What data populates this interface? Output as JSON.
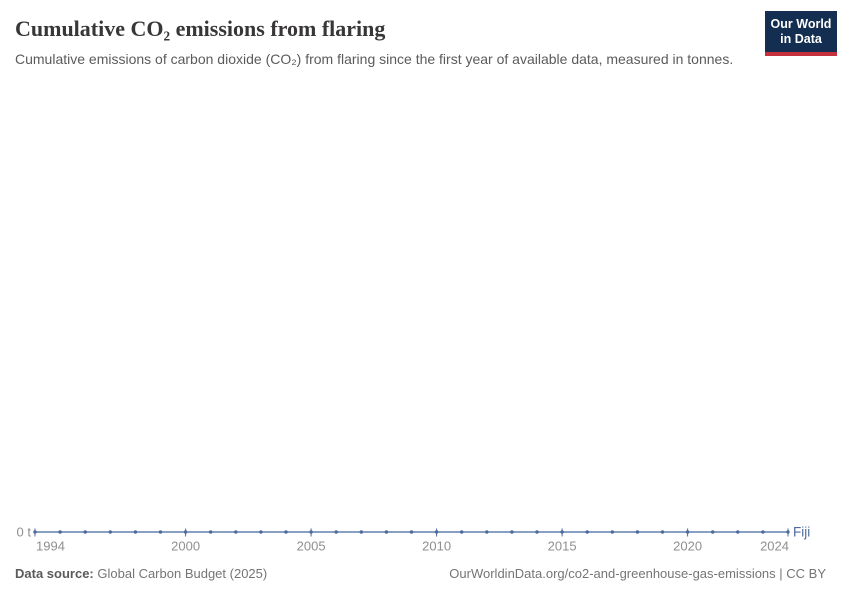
{
  "header": {
    "title": "Cumulative CO₂ emissions from flaring",
    "subtitle": "Cumulative emissions of carbon dioxide (CO₂) from flaring since the first year of available data, measured in tonnes.",
    "logo": {
      "line1": "Our World",
      "line2": "in Data",
      "bg_color": "#132e50",
      "bar_color": "#c5303e"
    }
  },
  "chart_data": {
    "type": "line",
    "title": "Cumulative CO₂ emissions from flaring",
    "unit": "t",
    "x": [
      1994,
      1995,
      1996,
      1997,
      1998,
      1999,
      2000,
      2001,
      2002,
      2003,
      2004,
      2005,
      2006,
      2007,
      2008,
      2009,
      2010,
      2011,
      2012,
      2013,
      2014,
      2015,
      2016,
      2017,
      2018,
      2019,
      2020,
      2021,
      2022,
      2023,
      2024
    ],
    "series": [
      {
        "name": "Fiji",
        "values": [
          0,
          0,
          0,
          0,
          0,
          0,
          0,
          0,
          0,
          0,
          0,
          0,
          0,
          0,
          0,
          0,
          0,
          0,
          0,
          0,
          0,
          0,
          0,
          0,
          0,
          0,
          0,
          0,
          0,
          0,
          0
        ]
      }
    ],
    "x_ticks": [
      1994,
      2000,
      2005,
      2010,
      2015,
      2020,
      2024
    ],
    "x_tick_labels": [
      "1994",
      "2000",
      "2005",
      "2010",
      "2015",
      "2020",
      "2024"
    ],
    "y_axis_label": "0 t",
    "ylim": [
      0,
      0
    ],
    "grid": false,
    "legend": "entity-label-at-line-end",
    "line_color": "#6180b0",
    "marker_color": "#4c6a9c",
    "entity_label_color": "#4c6a9c",
    "axis_text_color": "#8f8f8f"
  },
  "footer": {
    "source_label": "Data source:",
    "source_value": "Global Carbon Budget (2025)",
    "attribution": "OurWorldinData.org/co2-and-greenhouse-gas-emissions | CC BY"
  }
}
